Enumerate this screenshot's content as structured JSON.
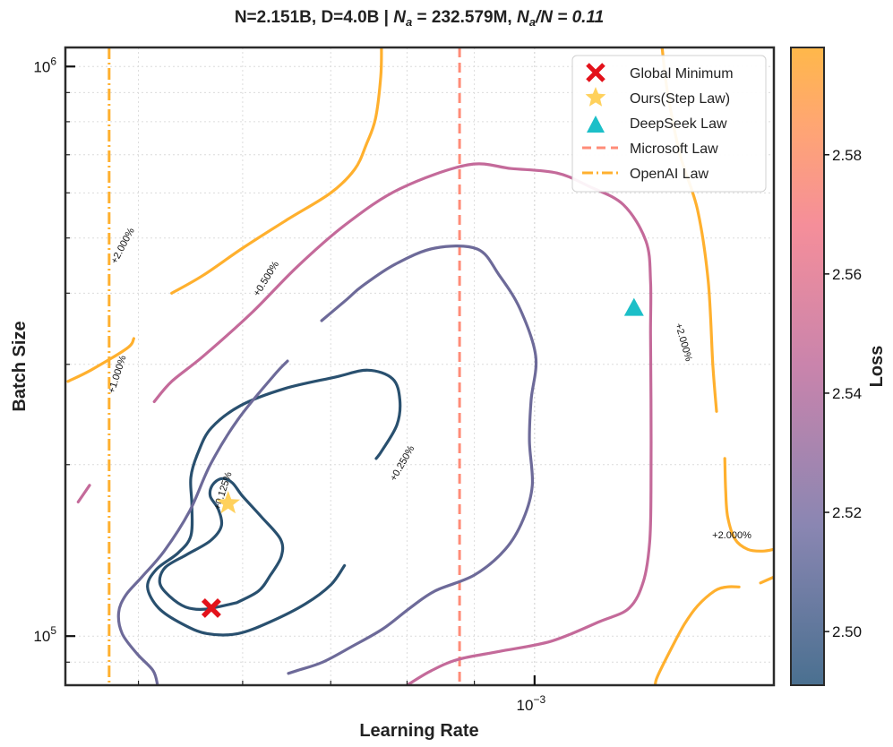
{
  "chart_data": {
    "type": "contour",
    "title_parts": [
      "N=2.151B, D=4.0B | ",
      "N",
      "a",
      " = 232.579M, ",
      "N",
      "a",
      "/N = 0.11"
    ],
    "xlabel": "Learning Rate",
    "ylabel": "Batch Size",
    "x_scale": "log",
    "y_scale": "log",
    "xlim": [
      0.00044,
      0.00152
    ],
    "ylim": [
      82000,
      1080000
    ],
    "x_ticks": [
      {
        "value": 0.001,
        "base": "10",
        "exp": "−3"
      }
    ],
    "y_ticks": [
      {
        "value": 100000,
        "base": "10",
        "exp": "5"
      },
      {
        "value": 1000000,
        "base": "10",
        "exp": "6"
      }
    ],
    "grid": true,
    "colorbar": {
      "label": "Loss",
      "range": [
        2.491,
        2.598
      ],
      "ticks": [
        "2.50",
        "2.52",
        "2.54",
        "2.56",
        "2.58"
      ],
      "tick_values": [
        2.5,
        2.52,
        2.54,
        2.56,
        2.58
      ],
      "colors": [
        "#4a7090",
        "#7f7fac",
        "#c480aa",
        "#f08aa0",
        "#ffa870",
        "#ffb84a"
      ]
    },
    "contour_labels": [
      "+0.125%",
      "+0.250%",
      "+0.500%",
      "+1.000%",
      "+2.000%"
    ],
    "contours": [
      {
        "level": "+0.125%",
        "color": "#29506f",
        "segments": [
          [
            [
              0.000594,
              0.1145
            ],
            [
              0.000562,
              0.1115
            ],
            [
              0.000543,
              0.1125
            ],
            [
              0.000528,
              0.1175
            ],
            [
              0.000519,
              0.124
            ],
            [
              0.000524,
              0.132
            ],
            [
              0.000544,
              0.139
            ],
            [
              0.000567,
              0.147
            ],
            [
              0.000578,
              0.156
            ],
            [
              0.000575,
              0.167
            ],
            [
              0.000567,
              0.176
            ],
            [
              0.000569,
              0.184
            ],
            [
              0.000578,
              0.189
            ],
            [
              0.000589,
              0.186
            ],
            [
              0.0006,
              0.176
            ],
            [
              0.00062,
              0.162
            ],
            [
              0.000641,
              0.148
            ],
            [
              0.000642,
              0.138
            ],
            [
              0.00063,
              0.128
            ],
            [
              0.000617,
              0.12
            ],
            [
              0.000594,
              0.1145
            ]
          ]
        ]
      },
      {
        "level": "+0.250%",
        "color": "#29506f",
        "segments": [
          [
            [
              0.000717,
              0.133
            ],
            [
              0.0007,
              0.123
            ],
            [
              0.00067,
              0.114
            ],
            [
              0.00063,
              0.106
            ],
            [
              0.000595,
              0.101
            ],
            [
              0.000564,
              0.101
            ],
            [
              0.00054,
              0.105
            ],
            [
              0.000518,
              0.112
            ],
            [
              0.000508,
              0.122
            ],
            [
              0.000516,
              0.131
            ],
            [
              0.000536,
              0.14
            ],
            [
              0.000548,
              0.15
            ],
            [
              0.000549,
              0.17
            ],
            [
              0.000548,
              0.19
            ],
            [
              0.000555,
              0.21
            ],
            [
              0.000568,
              0.232
            ],
            [
              0.000598,
              0.254
            ],
            [
              0.000646,
              0.272
            ],
            [
              0.000706,
              0.285
            ],
            [
              0.000747,
              0.293
            ],
            [
              0.00078,
              0.283
            ],
            [
              0.00079,
              0.26
            ],
            [
              0.000786,
              0.235
            ],
            [
              0.000766,
              0.212
            ],
            [
              0.000758,
              0.205
            ]
          ]
        ]
      },
      {
        "level": "+0.500%",
        "color": "#6d6a99",
        "segments": [
          [
            [
              0.000517,
              0.082
            ],
            [
              0.000513,
              0.087
            ],
            [
              0.000499,
              0.093
            ],
            [
              0.000486,
              0.101
            ],
            [
              0.000483,
              0.11
            ],
            [
              0.000489,
              0.118
            ],
            [
              0.000503,
              0.127
            ],
            [
              0.000523,
              0.141
            ],
            [
              0.000547,
              0.166
            ],
            [
              0.000567,
              0.2
            ],
            [
              0.000595,
              0.24
            ],
            [
              0.000633,
              0.286
            ],
            [
              0.000649,
              0.304
            ]
          ],
          [
            [
              0.000689,
              0.358
            ],
            [
              0.00072,
              0.39
            ],
            [
              0.00074,
              0.412
            ],
            [
              0.000784,
              0.45
            ],
            [
              0.00084,
              0.48
            ],
            [
              0.000905,
              0.478
            ],
            [
              0.00094,
              0.43
            ],
            [
              0.000975,
              0.375
            ],
            [
              0.001002,
              0.31
            ],
            [
              0.000994,
              0.26
            ],
            [
              0.000991,
              0.22
            ],
            [
              0.000996,
              0.184
            ],
            [
              0.00098,
              0.16
            ],
            [
              0.00095,
              0.142
            ],
            [
              0.0009,
              0.128
            ],
            [
              0.00084,
              0.12
            ],
            [
              0.000804,
              0.112
            ],
            [
              0.000767,
              0.103
            ],
            [
              0.000727,
              0.096
            ],
            [
              0.00069,
              0.09
            ],
            [
              0.00066,
              0.087
            ],
            [
              0.00065,
              0.086
            ]
          ]
        ]
      },
      {
        "level": "+1.000%",
        "color": "#c46a9a",
        "segments": [
          [
            [
              0.00045,
              0.172
            ],
            [
              0.000459,
              0.184
            ]
          ],
          [
            [
              0.000514,
              0.258
            ],
            [
              0.00053,
              0.28
            ],
            [
              0.00056,
              0.31
            ],
            [
              0.00061,
              0.37
            ],
            [
              0.00066,
              0.445
            ],
            [
              0.00072,
              0.53
            ],
            [
              0.00079,
              0.61
            ],
            [
              0.00089,
              0.672
            ],
            [
              0.00096,
              0.662
            ],
            [
              0.00104,
              0.65
            ],
            [
              0.0011,
              0.616
            ],
            [
              0.001168,
              0.572
            ],
            [
              0.001215,
              0.494
            ],
            [
              0.001225,
              0.42
            ],
            [
              0.001225,
              0.34
            ],
            [
              0.001226,
              0.26
            ],
            [
              0.001226,
              0.18
            ],
            [
              0.001223,
              0.146
            ],
            [
              0.00121,
              0.125
            ],
            [
              0.00118,
              0.112
            ],
            [
              0.00112,
              0.106
            ],
            [
              0.00103,
              0.098
            ],
            [
              0.00094,
              0.094
            ],
            [
              0.000875,
              0.091
            ],
            [
              0.000835,
              0.087
            ],
            [
              0.0008,
              0.082
            ]
          ]
        ]
      },
      {
        "level": "+2.000%",
        "color": "#ffb02e",
        "segments": [
          [
            [
              0.000442,
              0.28
            ],
            [
              0.00046,
              0.293
            ],
            [
              0.00049,
              0.32
            ],
            [
              0.000496,
              0.333
            ]
          ],
          [
            [
              0.00053,
              0.4
            ],
            [
              0.00056,
              0.43
            ],
            [
              0.0006,
              0.48
            ],
            [
              0.00065,
              0.54
            ],
            [
              0.0007,
              0.6
            ],
            [
              0.00073,
              0.66
            ],
            [
              0.000745,
              0.73
            ],
            [
              0.000757,
              0.81
            ],
            [
              0.000764,
              0.96
            ],
            [
              0.000765,
              1.08
            ]
          ],
          [
            [
              0.00125,
              1.08
            ],
            [
              0.001262,
              0.9
            ],
            [
              0.00129,
              0.7
            ],
            [
              0.00133,
              0.56
            ],
            [
              0.001355,
              0.42
            ],
            [
              0.001366,
              0.3
            ],
            [
              0.001375,
              0.248
            ]
          ],
          [
            [
              0.001395,
              0.205
            ],
            [
              0.001397,
              0.18
            ],
            [
              0.001402,
              0.162
            ],
            [
              0.00142,
              0.148
            ],
            [
              0.001452,
              0.142
            ],
            [
              0.00149,
              0.141
            ],
            [
              0.00152,
              0.142
            ]
          ],
          [
            [
              0.00152,
              0.127
            ],
            [
              0.001485,
              0.124
            ]
          ],
          [
            [
              0.00143,
              0.122
            ],
            [
              0.0014,
              0.122
            ],
            [
              0.00137,
              0.12
            ],
            [
              0.00133,
              0.113
            ],
            [
              0.0013,
              0.105
            ],
            [
              0.00127,
              0.095
            ],
            [
              0.00124,
              0.085
            ],
            [
              0.001235,
              0.082
            ]
          ]
        ]
      }
    ],
    "markers": {
      "global_minimum": {
        "x": 0.000568,
        "y": 112000
      },
      "ours_step_law": {
        "x": 0.000585,
        "y": 171000
      },
      "deepseek_law": {
        "x": 0.00119,
        "y": 377000
      }
    },
    "vlines": {
      "microsoft_law": 0.000877,
      "openai_law": 0.000475
    },
    "legend": {
      "position": "upper right",
      "items": [
        "Global Minimum",
        "Ours(Step Law)",
        "DeepSeek Law",
        "Microsoft Law",
        "OpenAI Law"
      ],
      "colors": {
        "global_minimum": "#e3121b",
        "ours": "#ffd15c",
        "deepseek": "#1cbfc8",
        "microsoft": "#ff8c78",
        "openai": "#ffb02e"
      }
    }
  }
}
